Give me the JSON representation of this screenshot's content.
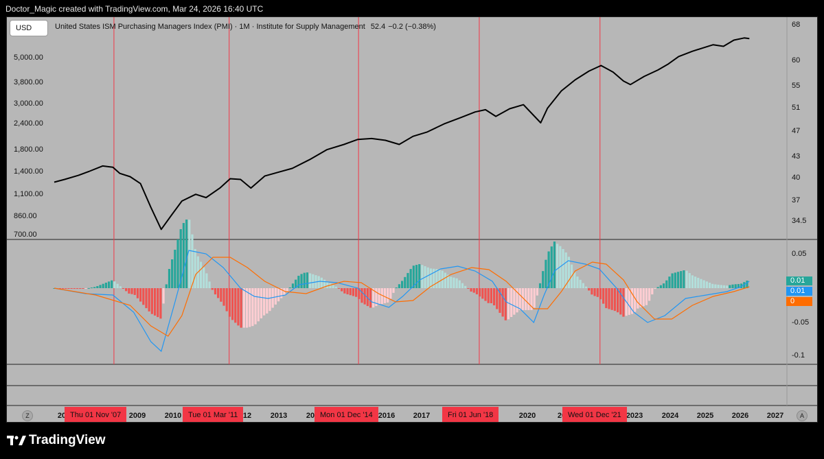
{
  "credit": "Doctor_Magic created with TradingView.com, Mar 24, 2026 16:40 UTC",
  "currency_button": "USD",
  "legend": {
    "title": "United States ISM Purchasing Managers Index (PMI) · 1M · Institute for Supply Management",
    "value": "52.4",
    "change": "−0.2 (−0.38%)"
  },
  "left_axis": [
    "5,000.00",
    "3,800.00",
    "3,000.00",
    "2,400.00",
    "1,800.00",
    "1,400.00",
    "1,100.00",
    "860.00",
    "700.00"
  ],
  "right_axis": [
    "68",
    "60",
    "55",
    "51",
    "47",
    "43",
    "40",
    "37",
    "34.5"
  ],
  "macd_axis": [
    "0.05",
    "-0.05",
    "-0.1"
  ],
  "macd_badges": [
    {
      "label": "0.01",
      "color": "#26a69a"
    },
    {
      "label": "0.01",
      "color": "#2196f3"
    },
    {
      "label": "0",
      "color": "#ff6d00"
    }
  ],
  "time_axis": [
    "20",
    "2009",
    "2010",
    "12",
    "2013",
    "20",
    "2016",
    "2017",
    "2020",
    "20",
    "2023",
    "2024",
    "2025",
    "2026",
    "2027"
  ],
  "date_tags": [
    "Thu 01 Nov '07",
    "Tue 01 Mar '11",
    "Mon 01 Dec '14",
    "Fri 01 Jun '18",
    "Wed 01 Dec '21"
  ],
  "scale_buttons": {
    "left": "Z",
    "right": "A"
  },
  "brand": "TradingView",
  "colors": {
    "price_line": "#000000",
    "event_line": "#f23645",
    "hist_pos_strong": "#26a69a",
    "hist_pos_weak": "#b2dfdb",
    "hist_neg_strong": "#ef5350",
    "hist_neg_weak": "#ffcdd2",
    "macd_line": "#2196f3",
    "signal_line": "#ff6d00"
  },
  "chart_data": [
    {
      "type": "line",
      "name": "price",
      "x": [
        2006.1,
        2006.4,
        2006.8,
        2007.1,
        2007.5,
        2007.8,
        2008.0,
        2008.3,
        2008.6,
        2008.9,
        2009.2,
        2009.5,
        2009.8,
        2010.2,
        2010.5,
        2010.9,
        2011.2,
        2011.5,
        2011.8,
        2012.2,
        2012.6,
        2013.0,
        2013.5,
        2014.0,
        2014.5,
        2014.9,
        2015.3,
        2015.7,
        2016.1,
        2016.5,
        2016.9,
        2017.4,
        2017.9,
        2018.3,
        2018.6,
        2018.9,
        2019.3,
        2019.7,
        2020.2,
        2020.4,
        2020.8,
        2021.2,
        2021.6,
        2021.95,
        2022.3,
        2022.6,
        2022.8,
        2023.2,
        2023.6,
        2023.9,
        2024.2,
        2024.6,
        2024.9,
        2025.2,
        2025.5,
        2025.8,
        2026.1,
        2026.25
      ],
      "values": [
        1290,
        1330,
        1390,
        1450,
        1540,
        1520,
        1420,
        1370,
        1270,
        980,
        770,
        900,
        1050,
        1130,
        1090,
        1210,
        1340,
        1330,
        1210,
        1380,
        1440,
        1500,
        1650,
        1840,
        1950,
        2060,
        2080,
        2040,
        1950,
        2130,
        2230,
        2440,
        2620,
        2780,
        2850,
        2650,
        2880,
        3010,
        2470,
        2900,
        3500,
        3950,
        4350,
        4620,
        4300,
        3900,
        3750,
        4100,
        4400,
        4700,
        5100,
        5400,
        5600,
        5800,
        5700,
        6100,
        6250,
        6200
      ]
    },
    {
      "type": "line",
      "name": "macd",
      "x": [
        2006.1,
        2007.0,
        2007.8,
        2008.4,
        2008.9,
        2009.2,
        2009.6,
        2010.0,
        2010.5,
        2011.0,
        2011.5,
        2011.9,
        2012.3,
        2012.8,
        2013.2,
        2013.8,
        2014.3,
        2014.9,
        2015.3,
        2015.8,
        2016.2,
        2016.7,
        2017.3,
        2017.8,
        2018.3,
        2018.8,
        2019.2,
        2019.6,
        2020.0,
        2020.3,
        2020.6,
        2021.0,
        2021.5,
        2021.9,
        2022.4,
        2022.9,
        2023.3,
        2023.8,
        2024.4,
        2025.0,
        2025.6,
        2026.0,
        2026.25
      ],
      "values": [
        0.0,
        -0.008,
        -0.01,
        -0.035,
        -0.078,
        -0.092,
        -0.02,
        0.055,
        0.05,
        0.03,
        0.0,
        -0.012,
        -0.015,
        -0.01,
        0.005,
        0.01,
        0.008,
        0.0,
        -0.02,
        -0.028,
        -0.012,
        0.012,
        0.028,
        0.032,
        0.025,
        0.01,
        -0.02,
        -0.03,
        -0.05,
        -0.01,
        0.025,
        0.04,
        0.035,
        0.028,
        0.0,
        -0.035,
        -0.05,
        -0.04,
        -0.015,
        -0.01,
        -0.005,
        0.002,
        0.01
      ]
    },
    {
      "type": "line",
      "name": "signal",
      "x": [
        2006.1,
        2007.3,
        2008.3,
        2008.9,
        2009.4,
        2009.8,
        2010.2,
        2010.7,
        2011.2,
        2011.7,
        2012.2,
        2012.8,
        2013.4,
        2014.0,
        2014.5,
        2015.0,
        2015.5,
        2016.0,
        2016.5,
        2017.0,
        2017.6,
        2018.2,
        2018.7,
        2019.2,
        2019.7,
        2020.0,
        2020.4,
        2020.8,
        2021.2,
        2021.7,
        2022.1,
        2022.6,
        2023.0,
        2023.5,
        2024.0,
        2024.6,
        2025.2,
        2025.8,
        2026.25
      ],
      "values": [
        0.0,
        -0.01,
        -0.025,
        -0.055,
        -0.07,
        -0.04,
        0.02,
        0.045,
        0.045,
        0.03,
        0.01,
        -0.005,
        -0.008,
        0.003,
        0.01,
        0.008,
        -0.008,
        -0.02,
        -0.018,
        0.002,
        0.02,
        0.03,
        0.027,
        0.01,
        -0.015,
        -0.03,
        -0.03,
        -0.005,
        0.025,
        0.038,
        0.035,
        0.012,
        -0.02,
        -0.045,
        -0.045,
        -0.025,
        -0.012,
        -0.005,
        0.002
      ]
    }
  ]
}
